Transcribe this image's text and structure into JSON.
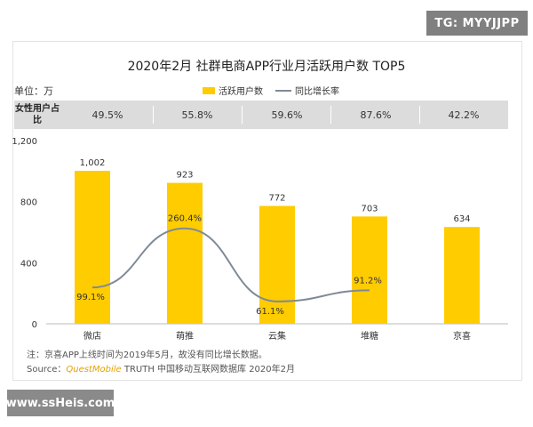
{
  "badge": "TG: MYYJJPP",
  "site_watermark": "www.ssHeis.com",
  "unit_label": "单位：万",
  "share_header": "女性用户占比",
  "female_share": [
    "49.5%",
    "55.8%",
    "59.6%",
    "87.6%",
    "42.2%"
  ],
  "note": "注：京喜APP上线时间为2019年5月，故没有同比增长数据。",
  "source": {
    "prefix": "Source：",
    "brand": "QuestMobile",
    "suffix": " TRUTH 中国移动互联网数据库 2020年2月"
  },
  "colors": {
    "bar": "#FFCC00",
    "line": "#7f8a97"
  },
  "chart_data": {
    "type": "bar",
    "title": "2020年2月 社群电商APP行业月活跃用户数 TOP5",
    "xlabel": "",
    "ylabel": "单位：万",
    "categories": [
      "微店",
      "萌推",
      "云集",
      "堆糖",
      "京喜"
    ],
    "ylim": [
      0,
      1200
    ],
    "yticks": [
      "0",
      "400",
      "800",
      "1,200"
    ],
    "series": [
      {
        "name": "活跃用户数",
        "type": "bar",
        "values": [
          1002,
          923,
          772,
          703,
          634
        ],
        "labels": [
          "1,002",
          "923",
          "772",
          "703",
          "634"
        ]
      },
      {
        "name": "同比增长率",
        "type": "line",
        "values": [
          99.1,
          260.4,
          61.1,
          91.2,
          null
        ],
        "labels": [
          "99.1%",
          "260.4%",
          "61.1%",
          "91.2%",
          ""
        ],
        "ylim": [
          0,
          500
        ]
      }
    ],
    "legend": "top-center"
  }
}
